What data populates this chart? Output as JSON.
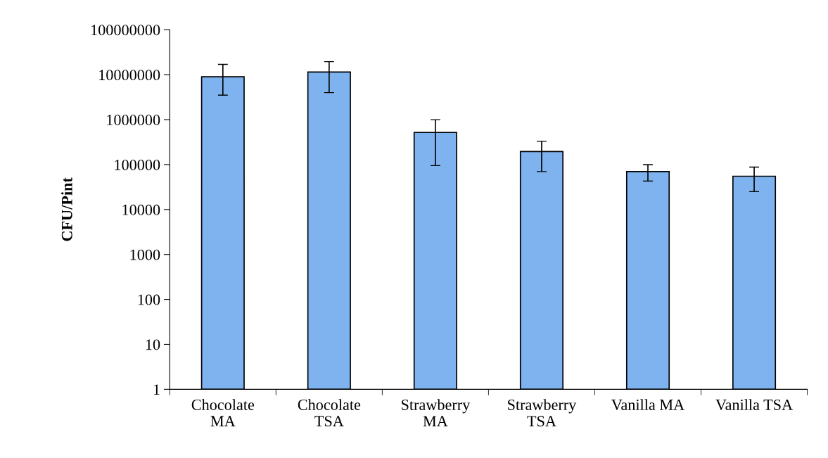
{
  "chart_data": {
    "type": "bar",
    "ylabel": "CFU/Pint",
    "categories": [
      "Chocolate\nMA",
      "Chocolate\nTSA",
      "Strawberry\nMA",
      "Strawberry\nTSA",
      "Vanilla MA",
      "Vanilla TSA"
    ],
    "values": [
      9000000,
      11500000,
      520000,
      195000,
      70000,
      55000
    ],
    "errors": [
      [
        3500000,
        17000000
      ],
      [
        4000000,
        19500000
      ],
      [
        95000,
        1000000
      ],
      [
        70000,
        330000
      ],
      [
        43000,
        100000
      ],
      [
        25000,
        88000
      ]
    ],
    "color": "#7fb3f0",
    "log": true,
    "ylim": [
      1,
      100000000
    ],
    "yticks": [
      1,
      10,
      100,
      1000,
      10000,
      100000,
      1000000,
      10000000,
      100000000
    ],
    "grid": false,
    "legend": false
  }
}
